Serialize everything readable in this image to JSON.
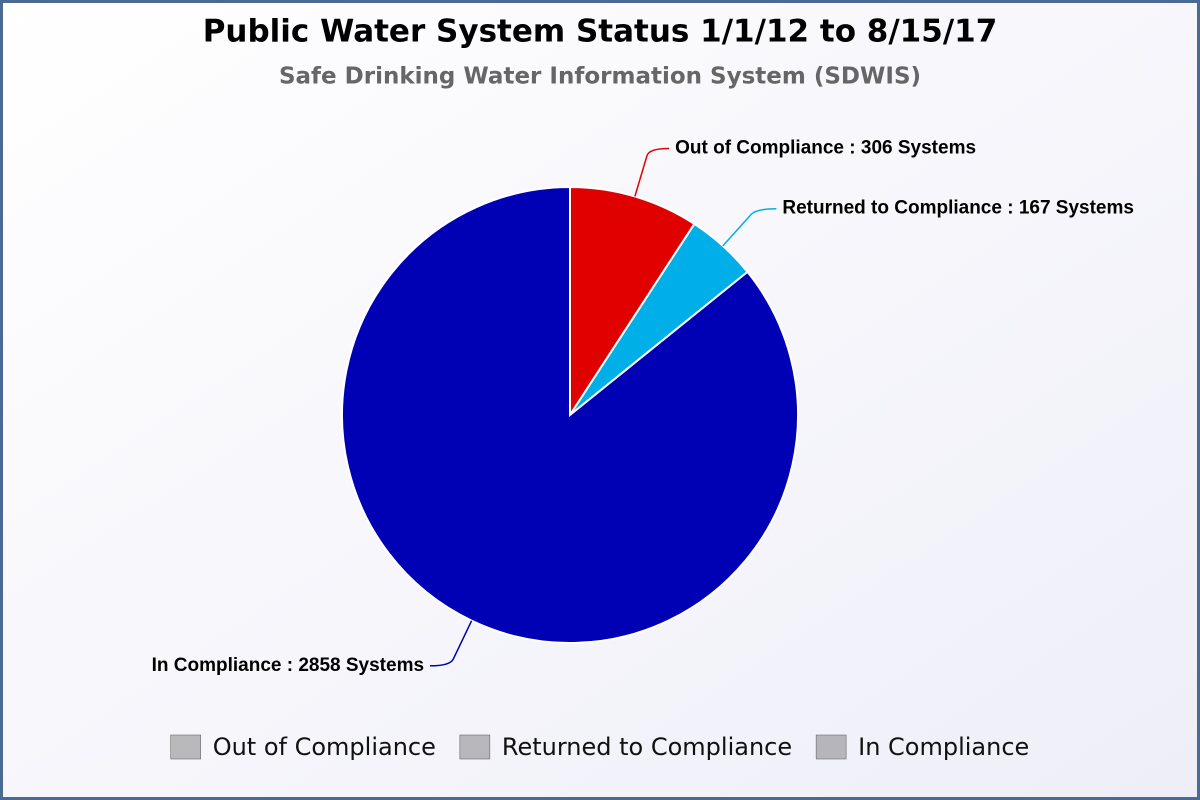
{
  "chart_data": {
    "type": "pie",
    "title": "Public Water System Status 1/1/12 to 8/15/17",
    "subtitle": "Safe Drinking Water Information System (SDWIS)",
    "categories": [
      "Out of Compliance",
      "Returned to Compliance",
      "In Compliance"
    ],
    "values": [
      306,
      167,
      2858
    ],
    "value_labels": [
      "Out of Compliance : 306 Systems",
      "Returned to Compliance : 167 Systems",
      "In Compliance : 2858 Systems"
    ],
    "colors": [
      "#e00000",
      "#00aee8",
      "#0000b4"
    ],
    "legend": "bottom"
  }
}
